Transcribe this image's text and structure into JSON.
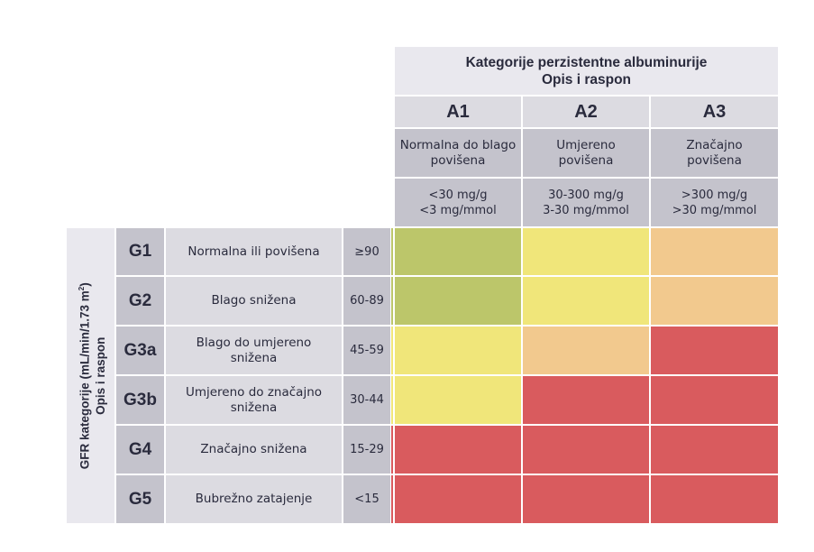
{
  "chart_data": {
    "type": "heatmap",
    "title": "Kategorije perzistentne albuminurije",
    "subtitle": "Opis i raspon",
    "column_header": {
      "title_line1": "Kategorije perzistentne albuminurije",
      "title_line2": "Opis i raspon"
    },
    "row_header": {
      "line1": "GFR kategorije (mL/min/1.73 m",
      "sup": "2",
      "line1_end": ")",
      "line2": "Opis i raspon"
    },
    "columns": [
      {
        "code": "A1",
        "desc_line1": "Normalna do blago",
        "desc_line2": "povišena",
        "range_line1": "<30 mg/g",
        "range_line2": "<3 mg/mmol"
      },
      {
        "code": "A2",
        "desc_line1": "Umjereno",
        "desc_line2": "povišena",
        "range_line1": "30-300 mg/g",
        "range_line2": "3-30 mg/mmol"
      },
      {
        "code": "A3",
        "desc_line1": "Značajno",
        "desc_line2": "povišena",
        "range_line1": ">300 mg/g",
        "range_line2": ">30 mg/mmol"
      }
    ],
    "rows": [
      {
        "code": "G1",
        "desc": "Normalna ili povišena",
        "range": "≥90"
      },
      {
        "code": "G2",
        "desc": "Blago snižena",
        "range": "60-89"
      },
      {
        "code": "G3a",
        "desc": "Blago do umjereno snižena",
        "range": "45-59"
      },
      {
        "code": "G3b",
        "desc": "Umjereno do značajno snižena",
        "range": "30-44"
      },
      {
        "code": "G4",
        "desc": "Značajno snižena",
        "range": "15-29"
      },
      {
        "code": "G5",
        "desc": "Bubrežno zatajenje",
        "range": "<15"
      }
    ],
    "risk_levels": [
      "low",
      "moderate",
      "high",
      "very-high"
    ],
    "risk_colors": {
      "low": "#bcc66a",
      "moderate": "#f0e67a",
      "high": "#f2c98e",
      "very-high": "#d95b5e"
    },
    "values": [
      [
        "low",
        "moderate",
        "high"
      ],
      [
        "low",
        "moderate",
        "high"
      ],
      [
        "moderate",
        "high",
        "very-high"
      ],
      [
        "moderate",
        "very-high",
        "very-high"
      ],
      [
        "very-high",
        "very-high",
        "very-high"
      ],
      [
        "very-high",
        "very-high",
        "very-high"
      ]
    ]
  }
}
